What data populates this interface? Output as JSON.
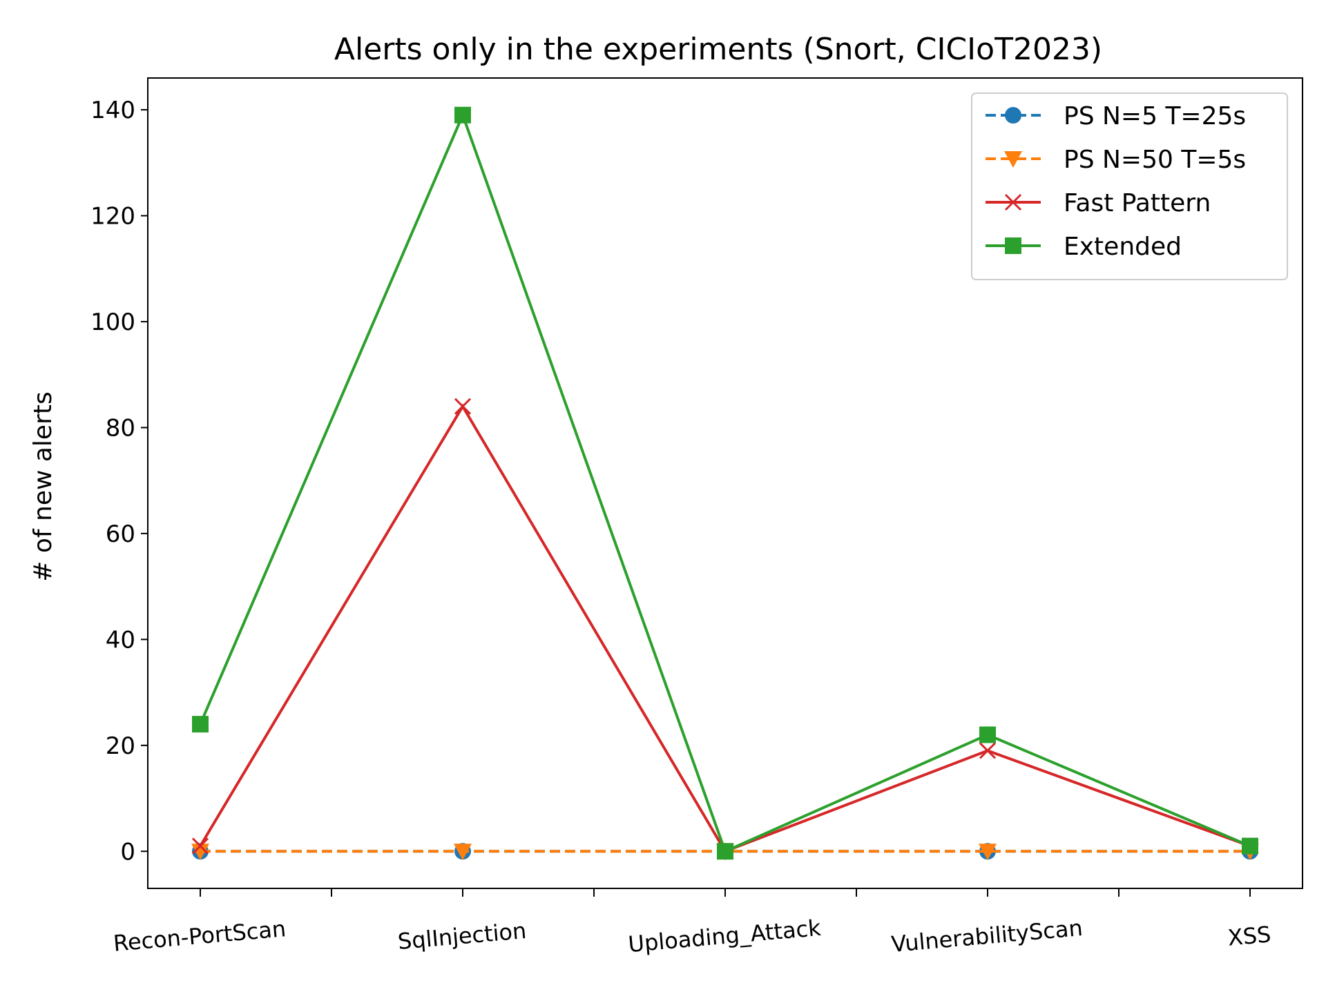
{
  "chart_data": {
    "type": "line",
    "title": "Alerts only in the experiments (Snort, CICIoT2023)",
    "xlabel": "",
    "ylabel": "# of new alerts",
    "categories": [
      "Recon-PortScan",
      "SqlInjection",
      "Uploading_Attack",
      "VulnerabilityScan",
      "XSS"
    ],
    "ylim": [
      -7,
      146
    ],
    "yticks": [
      0,
      20,
      40,
      60,
      80,
      100,
      120,
      140
    ],
    "grid": false,
    "legend_position": "top-right",
    "series": [
      {
        "name": "PS N=5 T=25s",
        "values": [
          0,
          0,
          0,
          0,
          0
        ],
        "color": "#1f77b4",
        "marker": "circle",
        "line_style": "dashed"
      },
      {
        "name": "PS N=50 T=5s",
        "values": [
          0,
          0,
          0,
          0,
          0
        ],
        "color": "#ff7f0e",
        "marker": "triangle-down",
        "line_style": "dashed"
      },
      {
        "name": "Fast Pattern",
        "values": [
          1,
          84,
          0,
          19,
          1
        ],
        "color": "#d62728",
        "marker": "x",
        "line_style": "solid"
      },
      {
        "name": "Extended",
        "values": [
          24,
          139,
          0,
          22,
          1
        ],
        "color": "#2ca02c",
        "marker": "square",
        "line_style": "solid"
      }
    ]
  }
}
